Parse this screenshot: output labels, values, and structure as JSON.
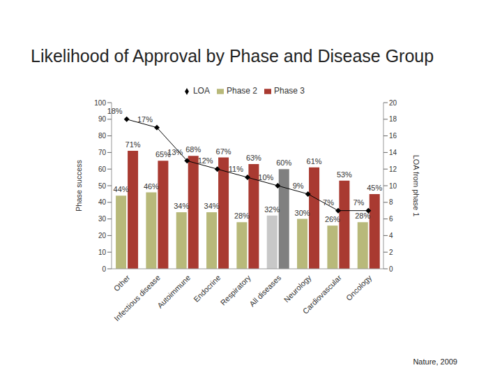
{
  "chart_data": {
    "type": "bar",
    "title": "Likelihood of Approval by Phase and Disease Group",
    "source": "Nature, 2009",
    "ylabel": "Phase success",
    "y2label": "LOA from phase 1",
    "categories": [
      "Other",
      "Infectious disease",
      "Autoimmune",
      "Endocrine",
      "Respiratory",
      "All diseases",
      "Neurology",
      "Cardiovascular",
      "Oncology"
    ],
    "series": [
      {
        "name": "Phase 2",
        "colors": [
          "#b8b97a",
          "#b8b97a",
          "#b8b97a",
          "#b8b97a",
          "#b8b97a",
          "#c8c8c8",
          "#b8b97a",
          "#b8b97a",
          "#b8b97a"
        ],
        "values": [
          44,
          46,
          34,
          34,
          28,
          32,
          30,
          26,
          28
        ],
        "value_labels": [
          "44%",
          "46%",
          "34%",
          "34%",
          "28%",
          "32%",
          "30%",
          "26%",
          "28%"
        ]
      },
      {
        "name": "Phase 3",
        "colors": [
          "#a93a31",
          "#a93a31",
          "#a93a31",
          "#a93a31",
          "#a93a31",
          "#808080",
          "#a93a31",
          "#a93a31",
          "#a93a31"
        ],
        "values": [
          71,
          65,
          68,
          67,
          63,
          60,
          61,
          53,
          45
        ],
        "value_labels": [
          "71%",
          "65%",
          "68%",
          "67%",
          "63%",
          "60%",
          "61%",
          "53%",
          "45%"
        ]
      },
      {
        "name": "LOA",
        "type": "line",
        "axis": "y2",
        "color": "#000000",
        "marker": "diamond",
        "values": [
          18,
          17,
          13,
          12,
          11,
          10,
          9,
          7,
          7
        ],
        "value_labels": [
          "18%",
          "17%",
          "13%",
          "12%",
          "11%",
          "10%",
          "9%",
          "7%",
          "7%"
        ]
      }
    ],
    "ylim": [
      0,
      100
    ],
    "yticks": [
      0,
      10,
      20,
      30,
      40,
      50,
      60,
      70,
      80,
      90,
      100
    ],
    "y2lim": [
      0,
      20
    ],
    "y2ticks": [
      0,
      2,
      4,
      6,
      8,
      10,
      12,
      14,
      16,
      18,
      20
    ],
    "legend": "top",
    "data_labels": true,
    "grid": false
  }
}
